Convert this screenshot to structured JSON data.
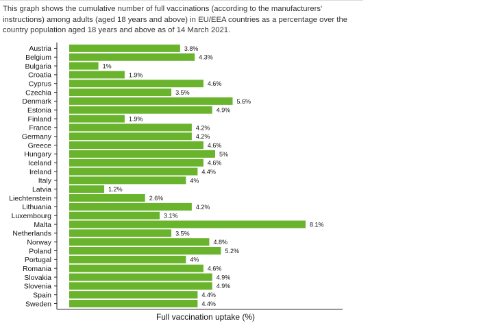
{
  "description": "This graph shows the cumulative number of full vaccinations (according to the manufacturers' instructions) among adults (aged 18 years and above) in EU/EEA countries as a percentage over the country population aged 18 years and above as of 14 March 2021.",
  "colors": {
    "bar": "#6ab42d",
    "axis": "#222222",
    "text": "#111111"
  },
  "chart_data": {
    "type": "bar",
    "orientation": "horizontal",
    "xlabel": "Full vaccination uptake (%)",
    "ylabel": "",
    "xlim": [
      0,
      8.1
    ],
    "grid": false,
    "value_suffix": "%",
    "categories": [
      "Austria",
      "Belgium",
      "Bulgaria",
      "Croatia",
      "Cyprus",
      "Czechia",
      "Denmark",
      "Estonia",
      "Finland",
      "France",
      "Germany",
      "Greece",
      "Hungary",
      "Iceland",
      "Ireland",
      "Italy",
      "Latvia",
      "Liechtenstein",
      "Lithuania",
      "Luxembourg",
      "Malta",
      "Netherlands",
      "Norway",
      "Poland",
      "Portugal",
      "Romania",
      "Slovakia",
      "Slovenia",
      "Spain",
      "Sweden"
    ],
    "values": [
      3.8,
      4.3,
      1,
      1.9,
      4.6,
      3.5,
      5.6,
      4.9,
      1.9,
      4.2,
      4.2,
      4.6,
      5,
      4.6,
      4.4,
      4,
      1.2,
      2.6,
      4.2,
      3.1,
      8.1,
      3.5,
      4.8,
      5.2,
      4,
      4.6,
      4.9,
      4.9,
      4.4,
      4.4
    ]
  }
}
